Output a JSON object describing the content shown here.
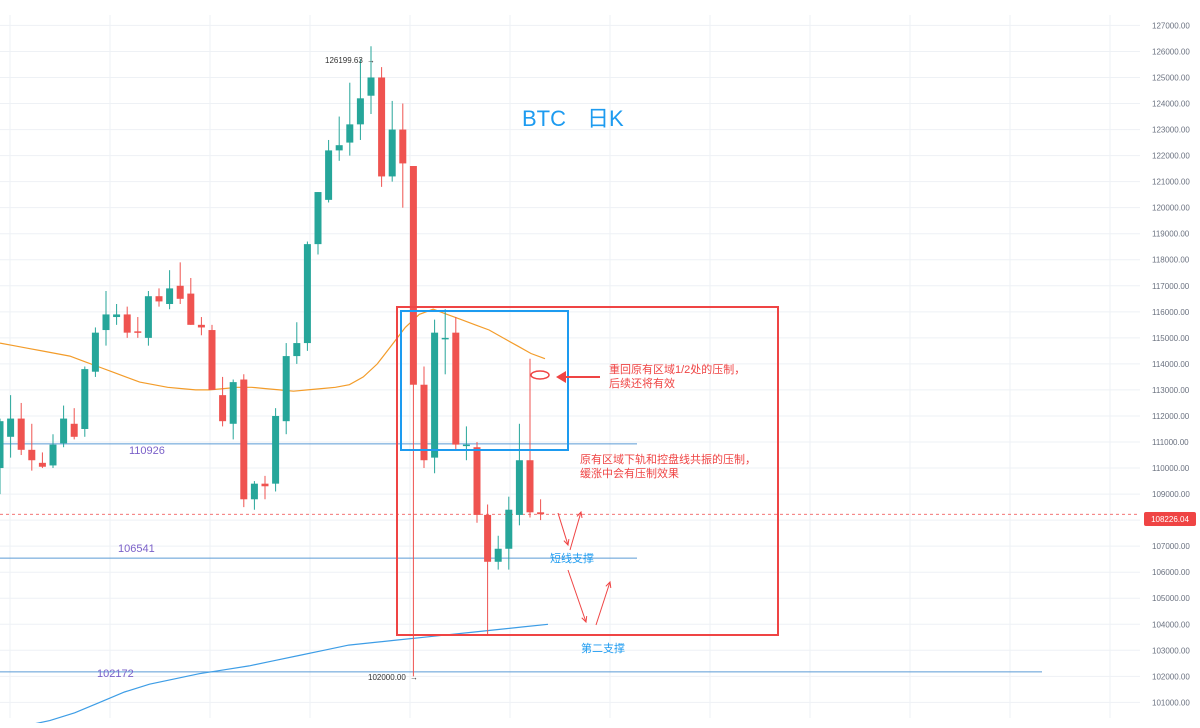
{
  "colors": {
    "up": "#26a69a",
    "down": "#ef5350",
    "grid": "#eef1f5",
    "axis_text": "#6b7280",
    "hline": "#5b9bd5",
    "level_label": "#7b61c9",
    "annotation_red": "#ef4444",
    "annotation_blue": "#1d9bf0",
    "ma_orange": "#f39c2a",
    "ma_blue": "#3d9de6",
    "price_badge": "#ef4444",
    "title": "#1d9bf0"
  },
  "chart_data": {
    "type": "candlestick",
    "title": "BTC",
    "subtitle": "日K",
    "ylim": [
      100400,
      127400
    ],
    "y_ticks": [
      101000,
      102000,
      103000,
      104000,
      105000,
      106000,
      107000,
      108000,
      109000,
      110000,
      111000,
      112000,
      113000,
      114000,
      115000,
      116000,
      117000,
      118000,
      119000,
      120000,
      121000,
      122000,
      123000,
      124000,
      125000,
      126000,
      127000
    ],
    "y_tick_labels": [
      "101000.00",
      "102000.00",
      "103000.00",
      "104000.00",
      "105000.00",
      "106000.00",
      "107000.00",
      "108000.00",
      "109000.00",
      "110000.00",
      "111000.00",
      "112000.00",
      "113000.00",
      "114000.00",
      "115000.00",
      "116000.00",
      "117000.00",
      "118000.00",
      "119000.00",
      "120000.00",
      "121000.00",
      "122000.00",
      "123000.00",
      "124000.00",
      "125000.00",
      "126000.00",
      "127000.00"
    ],
    "candles": [
      {
        "o": 110000,
        "h": 111900,
        "l": 109000,
        "c": 111800
      },
      {
        "o": 111200,
        "h": 112800,
        "l": 110400,
        "c": 111900
      },
      {
        "o": 111900,
        "h": 112500,
        "l": 110500,
        "c": 110700
      },
      {
        "o": 110700,
        "h": 111700,
        "l": 109900,
        "c": 110300
      },
      {
        "o": 110200,
        "h": 110600,
        "l": 110000,
        "c": 110050
      },
      {
        "o": 110100,
        "h": 111300,
        "l": 110000,
        "c": 110900
      },
      {
        "o": 110950,
        "h": 112400,
        "l": 110800,
        "c": 111900
      },
      {
        "o": 111700,
        "h": 112300,
        "l": 111100,
        "c": 111200
      },
      {
        "o": 111500,
        "h": 113900,
        "l": 111200,
        "c": 113800
      },
      {
        "o": 113700,
        "h": 115400,
        "l": 113500,
        "c": 115200
      },
      {
        "o": 115300,
        "h": 116800,
        "l": 114700,
        "c": 115900
      },
      {
        "o": 115800,
        "h": 116300,
        "l": 115500,
        "c": 115900
      },
      {
        "o": 115900,
        "h": 116200,
        "l": 115000,
        "c": 115200
      },
      {
        "o": 115250,
        "h": 115800,
        "l": 115000,
        "c": 115200
      },
      {
        "o": 115000,
        "h": 116800,
        "l": 114700,
        "c": 116600
      },
      {
        "o": 116600,
        "h": 116900,
        "l": 116200,
        "c": 116400
      },
      {
        "o": 116300,
        "h": 117600,
        "l": 116100,
        "c": 116900
      },
      {
        "o": 117000,
        "h": 117900,
        "l": 116300,
        "c": 116500
      },
      {
        "o": 116700,
        "h": 117300,
        "l": 115500,
        "c": 115500
      },
      {
        "o": 115500,
        "h": 115800,
        "l": 115100,
        "c": 115400
      },
      {
        "o": 115300,
        "h": 115500,
        "l": 113100,
        "c": 113000
      },
      {
        "o": 112800,
        "h": 113500,
        "l": 111600,
        "c": 111800
      },
      {
        "o": 111700,
        "h": 113400,
        "l": 111100,
        "c": 113300
      },
      {
        "o": 113400,
        "h": 113600,
        "l": 108500,
        "c": 108800
      },
      {
        "o": 108800,
        "h": 109500,
        "l": 108400,
        "c": 109400
      },
      {
        "o": 109400,
        "h": 109700,
        "l": 108800,
        "c": 109300
      },
      {
        "o": 109400,
        "h": 112300,
        "l": 109100,
        "c": 112000
      },
      {
        "o": 111800,
        "h": 114800,
        "l": 111300,
        "c": 114300
      },
      {
        "o": 114300,
        "h": 115600,
        "l": 114000,
        "c": 114800
      },
      {
        "o": 114800,
        "h": 118700,
        "l": 114500,
        "c": 118600
      },
      {
        "o": 118600,
        "h": 120600,
        "l": 118200,
        "c": 120600
      },
      {
        "o": 120300,
        "h": 122600,
        "l": 120200,
        "c": 122200
      },
      {
        "o": 122200,
        "h": 123500,
        "l": 121800,
        "c": 122400
      },
      {
        "o": 122500,
        "h": 124800,
        "l": 122000,
        "c": 123200
      },
      {
        "o": 123200,
        "h": 125700,
        "l": 122600,
        "c": 124200
      },
      {
        "o": 124300,
        "h": 126200,
        "l": 123600,
        "c": 125000
      },
      {
        "o": 125000,
        "h": 125400,
        "l": 120800,
        "c": 121200
      },
      {
        "o": 121200,
        "h": 124100,
        "l": 121000,
        "c": 123000
      },
      {
        "o": 123000,
        "h": 124000,
        "l": 120000,
        "c": 121700
      },
      {
        "o": 121600,
        "h": 121600,
        "l": 102000,
        "c": 113200
      },
      {
        "o": 113200,
        "h": 113900,
        "l": 110000,
        "c": 110300
      },
      {
        "o": 110400,
        "h": 115700,
        "l": 109800,
        "c": 115200
      },
      {
        "o": 115000,
        "h": 116100,
        "l": 113600,
        "c": 115000
      },
      {
        "o": 115200,
        "h": 115800,
        "l": 110700,
        "c": 110900
      },
      {
        "o": 110900,
        "h": 111600,
        "l": 110300,
        "c": 110900
      },
      {
        "o": 110800,
        "h": 111000,
        "l": 107900,
        "c": 108200
      },
      {
        "o": 108200,
        "h": 108600,
        "l": 103600,
        "c": 106400
      },
      {
        "o": 106400,
        "h": 107400,
        "l": 106100,
        "c": 106900
      },
      {
        "o": 106900,
        "h": 108900,
        "l": 106100,
        "c": 108400
      },
      {
        "o": 108200,
        "h": 111700,
        "l": 107800,
        "c": 110300
      },
      {
        "o": 110300,
        "h": 114200,
        "l": 108100,
        "c": 108300
      },
      {
        "o": 108300,
        "h": 108800,
        "l": 108000,
        "c": 108226
      }
    ],
    "series": [
      {
        "values": [
          114800,
          114700,
          114600,
          114500,
          114400,
          114300,
          114100,
          113900,
          113700,
          113500,
          113300,
          113200,
          113100,
          113050,
          113000,
          113000,
          113050,
          113100,
          113100,
          113050,
          113000,
          112950,
          113000,
          113050,
          113100,
          113200,
          113500,
          114000,
          114700,
          115400,
          115900,
          116100,
          115900,
          115700,
          115500,
          115300,
          115000,
          114700,
          114400,
          114200
        ]
      },
      {
        "values": [
          100000,
          100100,
          100300,
          100600,
          101000,
          101400,
          101700,
          101900,
          102100,
          102250,
          102400,
          102600,
          102800,
          103000,
          103200,
          103300,
          103400,
          103500,
          103600,
          103700,
          103800,
          103900,
          104000
        ]
      }
    ],
    "levels": [
      {
        "value": 110926,
        "label": "110926"
      },
      {
        "value": 106541,
        "label": "106541"
      },
      {
        "value": 102172,
        "label": "102172"
      }
    ],
    "current_price": "108226.04",
    "high_marker": "126199.63",
    "low_marker": "102000.00",
    "annotations": [
      {
        "line1": "重回原有区域1/2处的压制，",
        "line2": "后续还将有效"
      },
      {
        "line1": "原有区域下轨和控盘线共振的压制，",
        "line2": "缓涨中会有压制效果"
      },
      {
        "line1": "短线支撑"
      },
      {
        "line1": "第二支撑"
      }
    ]
  }
}
